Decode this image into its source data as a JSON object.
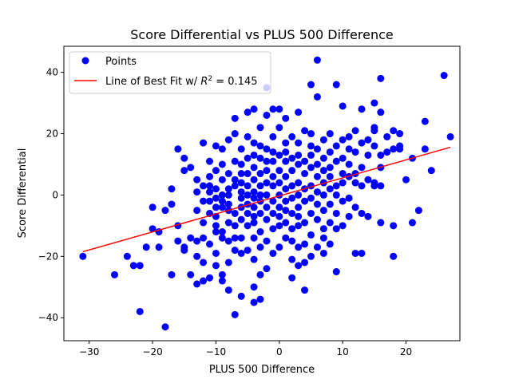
{
  "chart_data": {
    "type": "scatter",
    "title": "Score Differential vs PLUS 500 Difference",
    "xlabel": "PLUS 500 Difference",
    "ylabel": "Score Differential",
    "xlim": [
      -34,
      28.5
    ],
    "ylim": [
      -47.5,
      48.5
    ],
    "xticks": [
      -30,
      -20,
      -10,
      0,
      10,
      20
    ],
    "yticks": [
      -40,
      -20,
      0,
      20,
      40
    ],
    "grid": false,
    "legend_position": "upper-left",
    "colors": {
      "points": "#0000ff",
      "fit_line": "#ff0000"
    },
    "series": [
      {
        "name": "Points",
        "kind": "scatter",
        "points": [
          [
            -31,
            -20
          ],
          [
            -26,
            -26
          ],
          [
            -24,
            -20
          ],
          [
            -23,
            -23
          ],
          [
            -22,
            -38
          ],
          [
            -22,
            -23
          ],
          [
            -21,
            -17
          ],
          [
            -20,
            -4
          ],
          [
            -20,
            -11
          ],
          [
            -19,
            -17
          ],
          [
            -19,
            -12
          ],
          [
            -18,
            -43
          ],
          [
            -18,
            -5
          ],
          [
            -17,
            2
          ],
          [
            -17,
            -3
          ],
          [
            -17,
            -26
          ],
          [
            -16,
            -15
          ],
          [
            -16,
            -10
          ],
          [
            -16,
            15
          ],
          [
            -15,
            -17
          ],
          [
            -15,
            -18
          ],
          [
            -15,
            8
          ],
          [
            -15,
            12
          ],
          [
            -14,
            9
          ],
          [
            -14,
            -26
          ],
          [
            -14,
            -14
          ],
          [
            -13,
            -5
          ],
          [
            -13,
            -20
          ],
          [
            -13,
            -29
          ],
          [
            -13,
            -15
          ],
          [
            -13,
            1
          ],
          [
            -13,
            5
          ],
          [
            -12,
            17
          ],
          [
            -12,
            -28
          ],
          [
            -12,
            3
          ],
          [
            -12,
            -2
          ],
          [
            -12,
            -9
          ],
          [
            -12,
            -14
          ],
          [
            -12,
            -22
          ],
          [
            -11,
            -16
          ],
          [
            -11,
            -27
          ],
          [
            -11,
            -6
          ],
          [
            -11,
            -2
          ],
          [
            -11,
            1
          ],
          [
            -11,
            6
          ],
          [
            -11,
            11
          ],
          [
            -11,
            3
          ],
          [
            -10,
            16
          ],
          [
            -10,
            -4
          ],
          [
            -10,
            -10
          ],
          [
            -10,
            -7
          ],
          [
            -10,
            -19
          ],
          [
            -10,
            -23
          ],
          [
            -10,
            2
          ],
          [
            -10,
            8
          ],
          [
            -10,
            -1
          ],
          [
            -10,
            -12
          ],
          [
            -9,
            15
          ],
          [
            -9,
            -26
          ],
          [
            -9,
            -28
          ],
          [
            -9,
            -14
          ],
          [
            -9,
            -2
          ],
          [
            -9,
            -4
          ],
          [
            -9,
            0
          ],
          [
            -9,
            5
          ],
          [
            -9,
            10
          ],
          [
            -9,
            -12
          ],
          [
            -8,
            18
          ],
          [
            -8,
            -31
          ],
          [
            -8,
            -15
          ],
          [
            -8,
            -5
          ],
          [
            -8,
            -3
          ],
          [
            -8,
            0
          ],
          [
            -8,
            2
          ],
          [
            -8,
            7
          ],
          [
            -8,
            -9
          ],
          [
            -8,
            -22
          ],
          [
            -7,
            25
          ],
          [
            -7,
            20
          ],
          [
            -7,
            -39
          ],
          [
            -7,
            -18
          ],
          [
            -7,
            -14
          ],
          [
            -7,
            -6
          ],
          [
            -7,
            3
          ],
          [
            -7,
            11
          ],
          [
            -7,
            5
          ],
          [
            -7,
            -10
          ],
          [
            -6,
            15
          ],
          [
            -6,
            7
          ],
          [
            -6,
            -1
          ],
          [
            -6,
            -14
          ],
          [
            -6,
            -19
          ],
          [
            -6,
            -33
          ],
          [
            -6,
            -4
          ],
          [
            -6,
            1
          ],
          [
            -6,
            10
          ],
          [
            -6,
            4
          ],
          [
            -6,
            -8
          ],
          [
            -5,
            27
          ],
          [
            -5,
            -18
          ],
          [
            -5,
            -10
          ],
          [
            -5,
            -6
          ],
          [
            -5,
            0
          ],
          [
            -5,
            -3
          ],
          [
            -5,
            7
          ],
          [
            -5,
            12
          ],
          [
            -5,
            19
          ],
          [
            -5,
            3
          ],
          [
            -4,
            28
          ],
          [
            -4,
            17
          ],
          [
            -4,
            -14
          ],
          [
            -4,
            -21
          ],
          [
            -4,
            -30
          ],
          [
            -4,
            -35
          ],
          [
            -4,
            -9
          ],
          [
            -4,
            -4
          ],
          [
            -4,
            1
          ],
          [
            -4,
            5
          ],
          [
            -4,
            9
          ],
          [
            -4,
            13
          ],
          [
            -4,
            -1
          ],
          [
            -4,
            -7
          ],
          [
            -3,
            22
          ],
          [
            -3,
            -12
          ],
          [
            -3,
            -17
          ],
          [
            -3,
            -26
          ],
          [
            -3,
            -34
          ],
          [
            -3,
            -6
          ],
          [
            -3,
            -2
          ],
          [
            -3,
            3
          ],
          [
            -3,
            7
          ],
          [
            -3,
            12
          ],
          [
            -3,
            16
          ],
          [
            -3,
            0
          ],
          [
            -2,
            35
          ],
          [
            -2,
            26
          ],
          [
            -2,
            11
          ],
          [
            -2,
            -8
          ],
          [
            -2,
            -15
          ],
          [
            -2,
            -24
          ],
          [
            -2,
            -4
          ],
          [
            -2,
            0
          ],
          [
            -2,
            4
          ],
          [
            -2,
            8
          ],
          [
            -2,
            15
          ],
          [
            -1,
            28
          ],
          [
            -1,
            19
          ],
          [
            -1,
            -11
          ],
          [
            -1,
            -19
          ],
          [
            -1,
            -6
          ],
          [
            -1,
            -2
          ],
          [
            -1,
            3
          ],
          [
            -1,
            6
          ],
          [
            -1,
            11
          ],
          [
            -1,
            14
          ],
          [
            0,
            28
          ],
          [
            0,
            22
          ],
          [
            0,
            13
          ],
          [
            0,
            -10
          ],
          [
            0,
            -17
          ],
          [
            0,
            -4
          ],
          [
            0,
            0
          ],
          [
            0,
            4
          ],
          [
            0,
            8
          ],
          [
            0,
            -7
          ],
          [
            1,
            25
          ],
          [
            1,
            17
          ],
          [
            1,
            -9
          ],
          [
            1,
            -14
          ],
          [
            1,
            -2
          ],
          [
            1,
            2
          ],
          [
            1,
            6
          ],
          [
            1,
            11
          ],
          [
            1,
            14
          ],
          [
            1,
            -5
          ],
          [
            2,
            19
          ],
          [
            2,
            -11
          ],
          [
            2,
            -21
          ],
          [
            2,
            -27
          ],
          [
            2,
            -6
          ],
          [
            2,
            -1
          ],
          [
            2,
            3
          ],
          [
            2,
            8
          ],
          [
            2,
            12
          ],
          [
            2,
            -15
          ],
          [
            3,
            27
          ],
          [
            3,
            17
          ],
          [
            3,
            -10
          ],
          [
            3,
            -17
          ],
          [
            3,
            -23
          ],
          [
            3,
            -4
          ],
          [
            3,
            0
          ],
          [
            3,
            4
          ],
          [
            3,
            10
          ],
          [
            3,
            13
          ],
          [
            3,
            -7
          ],
          [
            4,
            21
          ],
          [
            4,
            -9
          ],
          [
            4,
            -16
          ],
          [
            4,
            -31
          ],
          [
            4,
            -2
          ],
          [
            4,
            2
          ],
          [
            4,
            7
          ],
          [
            4,
            11
          ],
          [
            4,
            -22
          ],
          [
            5,
            36
          ],
          [
            5,
            20
          ],
          [
            5,
            -13
          ],
          [
            5,
            -20
          ],
          [
            5,
            -6
          ],
          [
            5,
            -1
          ],
          [
            5,
            3
          ],
          [
            5,
            9
          ],
          [
            5,
            13
          ],
          [
            5,
            16
          ],
          [
            6,
            44
          ],
          [
            6,
            32
          ],
          [
            6,
            -8
          ],
          [
            6,
            -17
          ],
          [
            6,
            -3
          ],
          [
            6,
            1
          ],
          [
            6,
            6
          ],
          [
            6,
            10
          ],
          [
            6,
            15
          ],
          [
            7,
            18
          ],
          [
            7,
            -11
          ],
          [
            7,
            -19
          ],
          [
            7,
            -5
          ],
          [
            7,
            0
          ],
          [
            7,
            4
          ],
          [
            7,
            8
          ],
          [
            7,
            12
          ],
          [
            7,
            -14
          ],
          [
            8,
            20
          ],
          [
            8,
            -9
          ],
          [
            8,
            -16
          ],
          [
            8,
            -3
          ],
          [
            8,
            2
          ],
          [
            8,
            6
          ],
          [
            8,
            9
          ],
          [
            8,
            14
          ],
          [
            9,
            36
          ],
          [
            9,
            -25
          ],
          [
            9,
            -6
          ],
          [
            9,
            0
          ],
          [
            9,
            3
          ],
          [
            9,
            11
          ],
          [
            9,
            16
          ],
          [
            9,
            -11
          ],
          [
            10,
            29
          ],
          [
            10,
            18
          ],
          [
            10,
            -10
          ],
          [
            10,
            -2
          ],
          [
            10,
            4
          ],
          [
            10,
            7
          ],
          [
            10,
            12
          ],
          [
            11,
            15
          ],
          [
            11,
            -7
          ],
          [
            11,
            -1
          ],
          [
            11,
            6
          ],
          [
            11,
            10
          ],
          [
            11,
            19
          ],
          [
            12,
            21
          ],
          [
            12,
            -19
          ],
          [
            12,
            -4
          ],
          [
            12,
            4
          ],
          [
            12,
            7
          ],
          [
            12,
            14
          ],
          [
            13,
            28
          ],
          [
            13,
            -19
          ],
          [
            13,
            -6
          ],
          [
            13,
            3
          ],
          [
            13,
            9
          ],
          [
            13,
            17
          ],
          [
            14,
            18
          ],
          [
            14,
            -7
          ],
          [
            14,
            5
          ],
          [
            14,
            13
          ],
          [
            15,
            30
          ],
          [
            15,
            21
          ],
          [
            15,
            16
          ],
          [
            15,
            3
          ],
          [
            15,
            4
          ],
          [
            15,
            22
          ],
          [
            16,
            38
          ],
          [
            16,
            27
          ],
          [
            16,
            13
          ],
          [
            16,
            -9
          ],
          [
            16,
            3
          ],
          [
            16,
            9
          ],
          [
            17,
            19
          ],
          [
            17,
            14
          ],
          [
            18,
            21
          ],
          [
            18,
            15
          ],
          [
            18,
            -10
          ],
          [
            18,
            -20
          ],
          [
            19,
            20
          ],
          [
            19,
            16
          ],
          [
            19,
            15
          ],
          [
            20,
            5
          ],
          [
            21,
            12
          ],
          [
            21,
            -9
          ],
          [
            22,
            -5
          ],
          [
            23,
            24
          ],
          [
            23,
            15
          ],
          [
            24,
            8
          ],
          [
            26,
            39
          ],
          [
            27,
            19
          ]
        ]
      },
      {
        "name": "Line of Best Fit w/ R^2 = 0.145",
        "kind": "line",
        "slope": 0.587,
        "intercept": -0.28,
        "x_range": [
          -31,
          27
        ]
      }
    ],
    "legend": {
      "points_label": "Points",
      "fit_label_prefix": "Line of Best Fit w/ ",
      "fit_label_r2_symbol": "R",
      "fit_label_r2_exp": "2",
      "fit_label_r2_value": " = 0.145"
    }
  }
}
